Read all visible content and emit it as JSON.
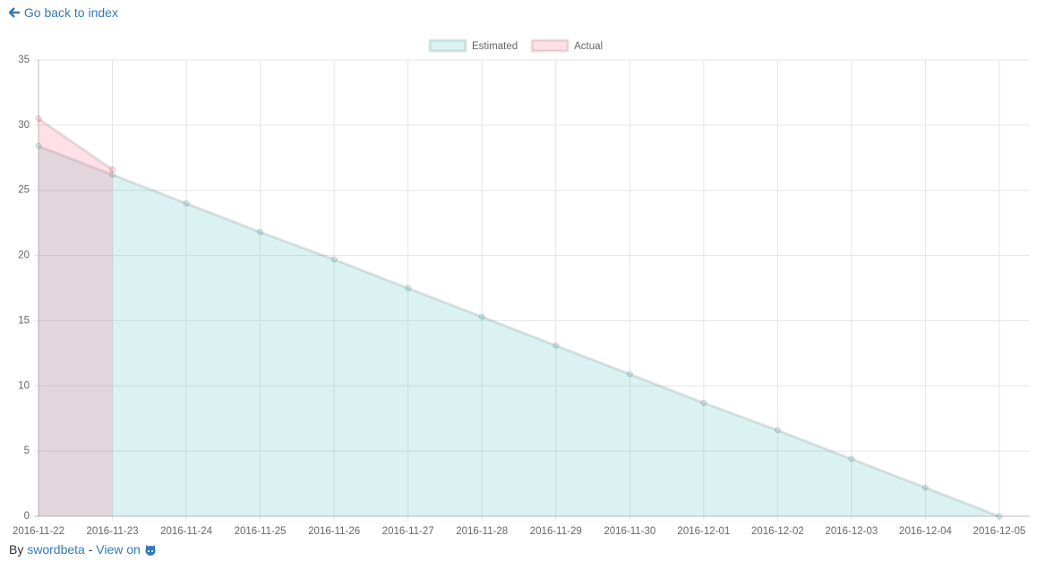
{
  "nav": {
    "back_link": "Go back to index"
  },
  "chart_data": {
    "type": "line",
    "categories": [
      "2016-11-22",
      "2016-11-23",
      "2016-11-24",
      "2016-11-25",
      "2016-11-26",
      "2016-11-27",
      "2016-11-28",
      "2016-11-29",
      "2016-11-30",
      "2016-12-01",
      "2016-12-02",
      "2016-12-03",
      "2016-12-04",
      "2016-12-05"
    ],
    "series": [
      {
        "name": "Estimated",
        "color": "rgba(75,192,192,0.2)",
        "values": [
          28.4,
          26.2,
          24.0,
          21.8,
          19.7,
          17.5,
          15.3,
          13.1,
          10.9,
          8.7,
          6.6,
          4.4,
          2.2,
          0
        ]
      },
      {
        "name": "Actual",
        "color": "rgba(255,99,132,0.2)",
        "values": [
          30.5,
          26.6,
          null,
          null,
          null,
          null,
          null,
          null,
          null,
          null,
          null,
          null,
          null,
          null
        ]
      }
    ],
    "ylim": [
      0,
      35
    ],
    "yticks": [
      0,
      5,
      10,
      15,
      20,
      25,
      30,
      35
    ],
    "grid": true,
    "fill": true,
    "legend": "top"
  },
  "footer": {
    "prefix": "By",
    "author": "swordbeta",
    "separator": "-",
    "view": "View on"
  }
}
